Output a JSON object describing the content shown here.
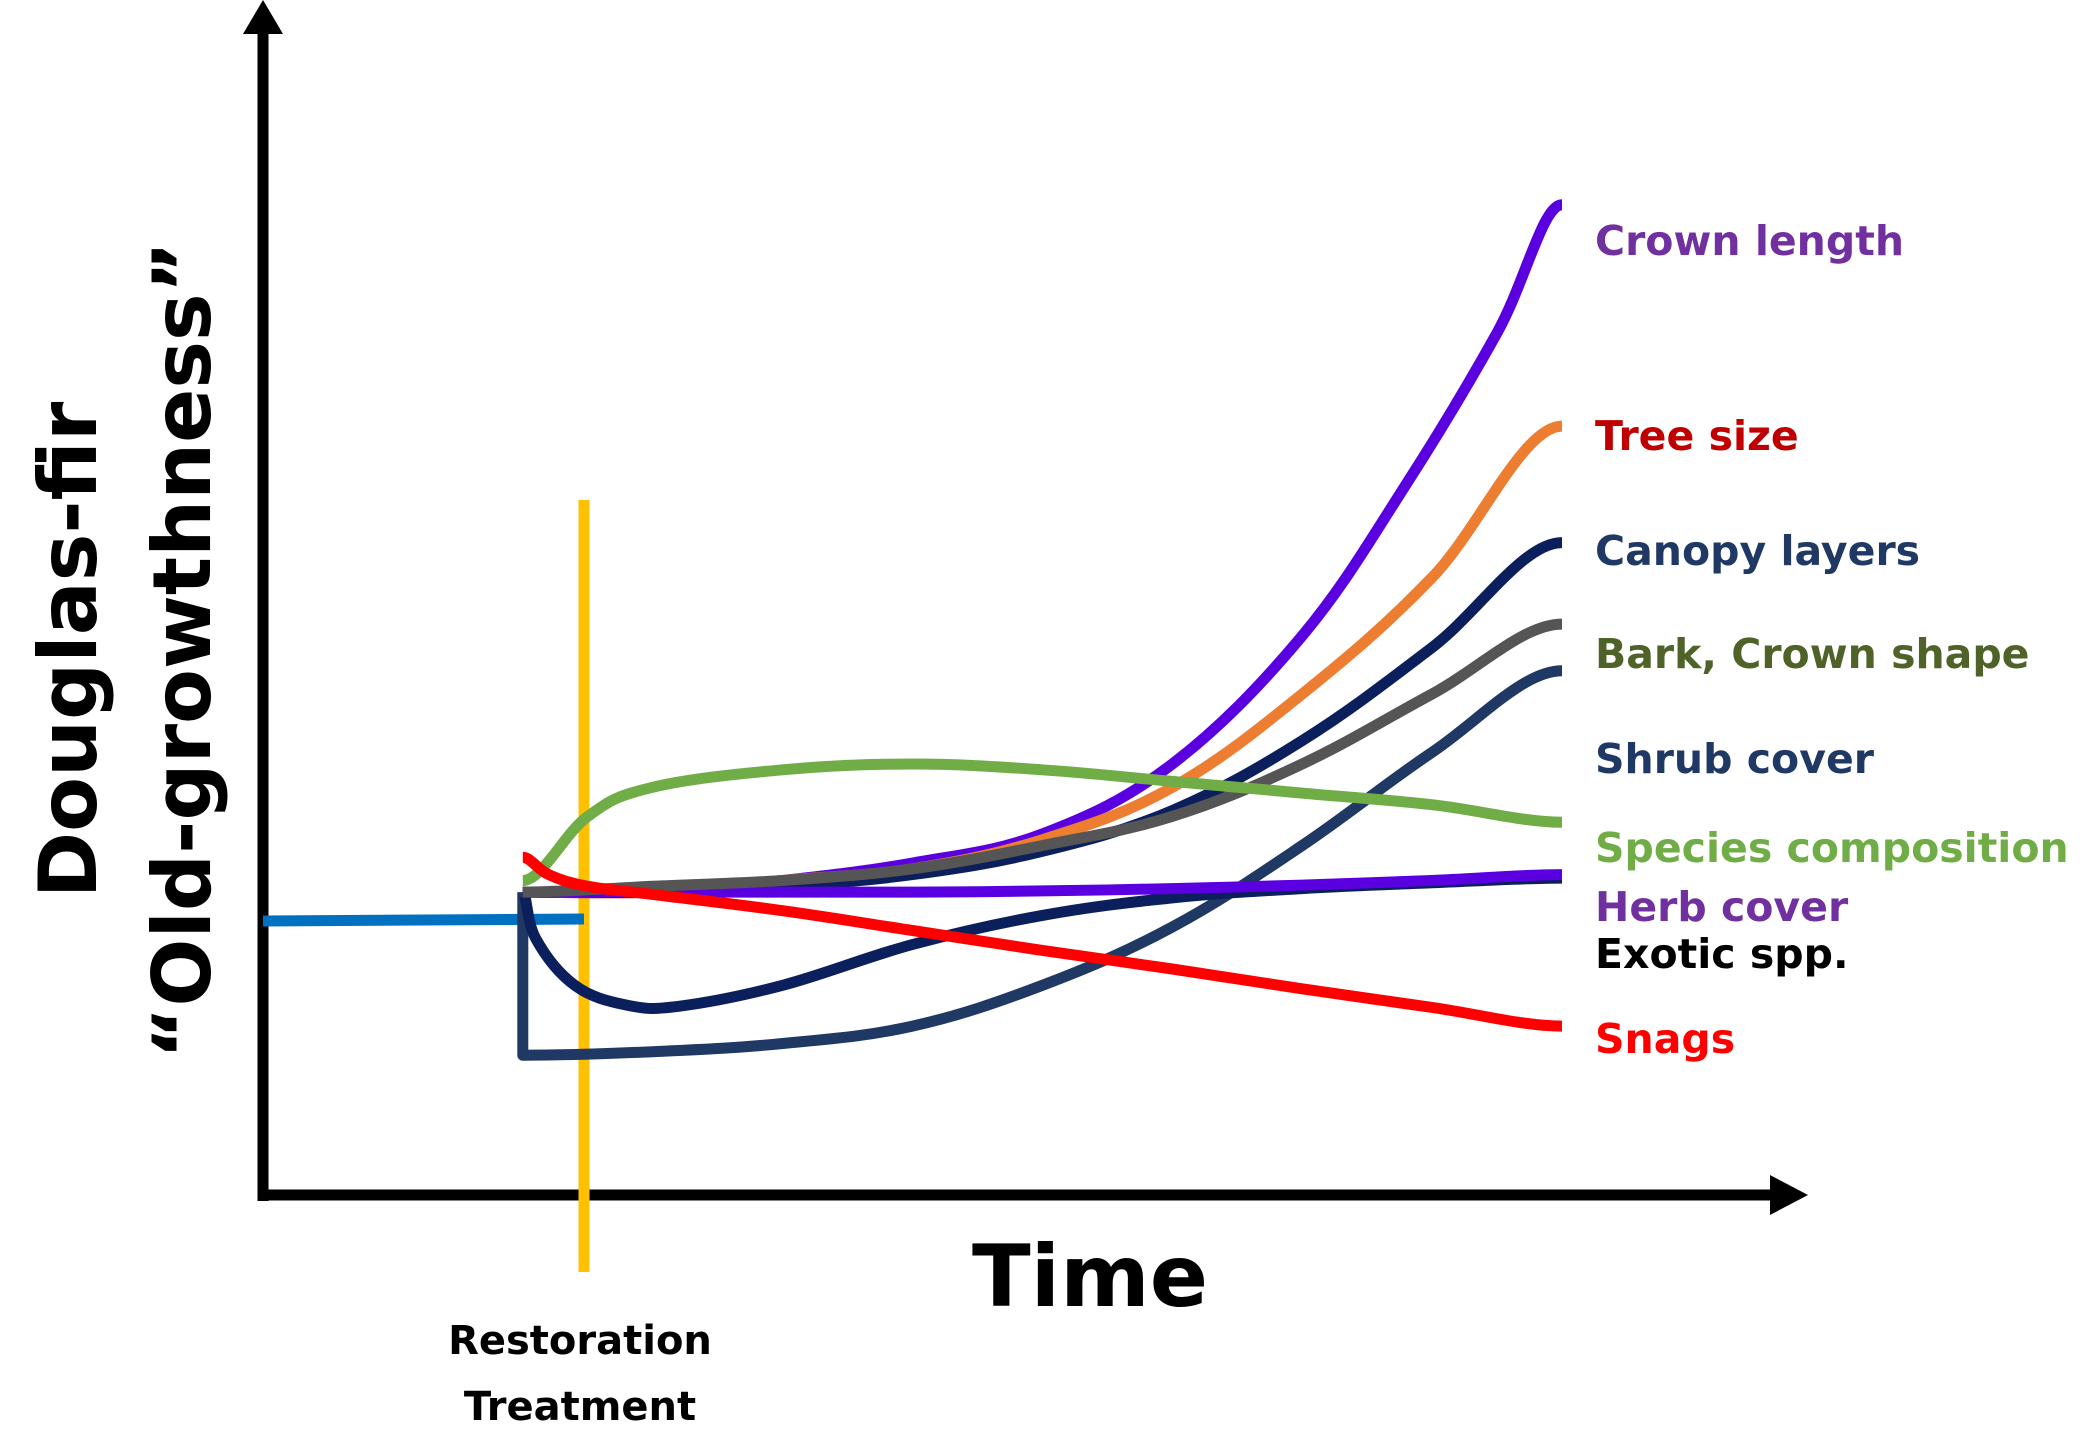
{
  "chart_data": {
    "type": "line",
    "title": "",
    "xlabel": "Time",
    "ylabel_line1": "Douglas-fir",
    "ylabel_line2": "“Old-growthness”",
    "treatment_label_line1": "Restoration",
    "treatment_label_line2": "Treatment",
    "colors": {
      "axis": "#000000",
      "treatment_line": "#FFC000",
      "baseline": "#0070C0"
    },
    "xlim": [
      0,
      100
    ],
    "ylim": [
      0,
      100
    ],
    "baseline": {
      "x": [
        0,
        20
      ],
      "y": [
        26,
        26
      ],
      "color": "#0070C0"
    },
    "treatment_x": 20,
    "grid": false,
    "legend": "right-of-line-ends",
    "series": [
      {
        "name": "Crown length",
        "label_color": "#7030A0",
        "line_color": "#5A00E0",
        "x": [
          20,
          30,
          40,
          50,
          60,
          70,
          80,
          88,
          95,
          100
        ],
        "y": [
          26,
          26,
          27,
          28.5,
          31,
          37,
          48,
          61,
          74,
          85
        ]
      },
      {
        "name": "Tree size",
        "label_color": "#C00000",
        "line_color": "#ED7D31",
        "x": [
          20,
          30,
          40,
          50,
          60,
          70,
          80,
          90,
          100
        ],
        "y": [
          26,
          26,
          27,
          28,
          30.5,
          35,
          43,
          53,
          66
        ]
      },
      {
        "name": "Canopy layers",
        "label_color": "#1F3864",
        "line_color": "#0B1F5C",
        "x": [
          20,
          30,
          40,
          50,
          60,
          70,
          80,
          90,
          100
        ],
        "y": [
          26,
          26,
          26.5,
          27.5,
          29.5,
          33,
          39,
          47,
          56
        ]
      },
      {
        "name": "Bark, Crown shape",
        "label_color": "#4F6228",
        "line_color": "#555555",
        "x": [
          20,
          30,
          40,
          50,
          60,
          70,
          80,
          90,
          100
        ],
        "y": [
          26,
          26.5,
          27,
          28,
          30,
          32.5,
          37,
          43,
          49
        ]
      },
      {
        "name": "Shrub cover",
        "label_color": "#1F3864",
        "line_color": "#1F3864",
        "x": [
          20,
          20,
          30,
          40,
          50,
          60,
          70,
          80,
          90,
          100
        ],
        "y": [
          26,
          12,
          12.3,
          13,
          14.5,
          18,
          23,
          30,
          38,
          45
        ]
      },
      {
        "name": "Species composition",
        "label_color": "#70AD47",
        "line_color": "#70AD47",
        "x": [
          20,
          25,
          30,
          40,
          50,
          60,
          70,
          80,
          90,
          100
        ],
        "y": [
          27,
          32.5,
          35,
          36.5,
          37,
          36.5,
          35.5,
          34.5,
          33.5,
          32
        ]
      },
      {
        "name": "Herb cover",
        "label_color": "#7030A0",
        "line_color": "#5A00E0",
        "x": [
          20,
          30,
          40,
          50,
          60,
          70,
          80,
          90,
          100
        ],
        "y": [
          26,
          26,
          26,
          26,
          26.1,
          26.3,
          26.6,
          27,
          27.5
        ]
      },
      {
        "name": "Exotic spp.",
        "label_color": "#000000",
        "line_color": "#0B1F5C",
        "x": [
          20,
          21,
          24,
          28,
          32,
          40,
          50,
          60,
          70,
          80,
          90,
          100
        ],
        "y": [
          26,
          22,
          18,
          16.3,
          16.2,
          18,
          21.5,
          24,
          25.5,
          26.3,
          26.8,
          27.2
        ]
      },
      {
        "name": "Snags",
        "label_color": "#FF0000",
        "line_color": "#FF0000",
        "x": [
          20,
          22,
          25,
          30,
          40,
          50,
          60,
          70,
          80,
          90,
          100
        ],
        "y": [
          29,
          27.5,
          26.5,
          25.8,
          24.4,
          22.7,
          21,
          19.4,
          17.7,
          16.1,
          14.5
        ]
      }
    ]
  }
}
